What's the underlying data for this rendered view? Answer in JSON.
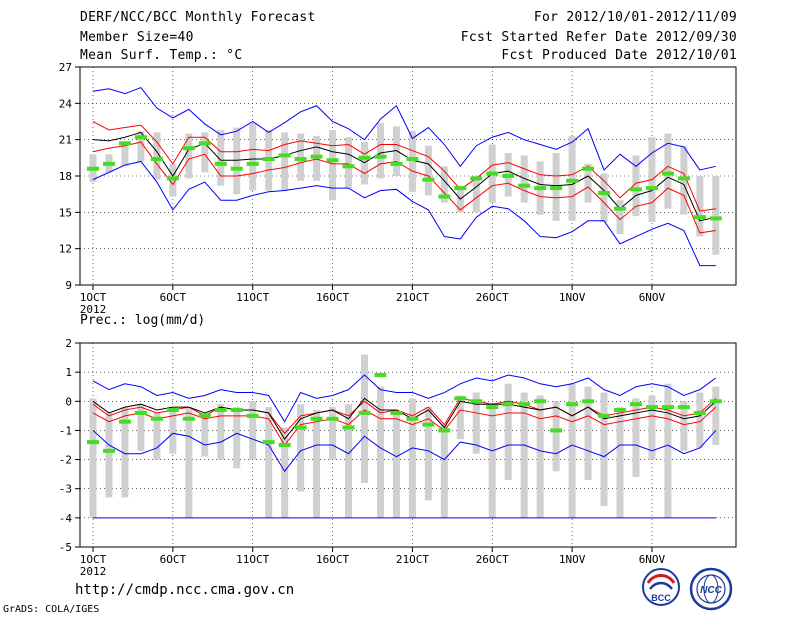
{
  "header": {
    "title": "DERF/NCC/BCC Monthly Forecast",
    "member_size": "Member Size=40",
    "variable1": "Mean Surf. Temp.: °C",
    "period": "For 2012/10/01-2012/11/09",
    "started": "Fcst Started Refer Date 2012/09/30",
    "produced": "Fcst Produced Date 2012/10/01"
  },
  "footer": {
    "url": "http://cmdp.ncc.cma.gov.cn",
    "grads": "GrADS: COLA/IGES",
    "logo1": "BCC",
    "logo2": "NCC"
  },
  "colors": {
    "upper_envelope": "#0000ff",
    "inner_band": "#ff0000",
    "ensemble_mean": "#000000",
    "box": "#d0d0d0",
    "marker": "#44dd22"
  },
  "chart_data": [
    {
      "type": "line",
      "title": "Mean Surf. Temp.: °C",
      "ylim": [
        9,
        27
      ],
      "yticks": [
        9,
        12,
        15,
        18,
        21,
        24,
        27
      ],
      "xlim": [
        1,
        40
      ],
      "xtick_positions": [
        1,
        6,
        11,
        16,
        21,
        26,
        31,
        36
      ],
      "xtick_labels": [
        "1OCT",
        "6OCT",
        "11OCT",
        "16OCT",
        "21OCT",
        "26OCT",
        "1NOV",
        "6NOV"
      ],
      "xtick_sublabel": "2012",
      "days": [
        1,
        2,
        3,
        4,
        5,
        6,
        7,
        8,
        9,
        10,
        11,
        12,
        13,
        14,
        15,
        16,
        17,
        18,
        19,
        20,
        21,
        22,
        23,
        24,
        25,
        26,
        27,
        28,
        29,
        30,
        31,
        32,
        33,
        34,
        35,
        36,
        37,
        38,
        39,
        40
      ],
      "series": [
        {
          "name": "max",
          "values": [
            25.0,
            25.2,
            24.8,
            25.3,
            23.6,
            22.8,
            23.5,
            22.3,
            21.4,
            21.7,
            22.5,
            21.6,
            22.4,
            23.3,
            23.8,
            22.5,
            21.9,
            21.0,
            22.7,
            23.8,
            21.1,
            22.0,
            20.6,
            18.8,
            20.5,
            21.2,
            21.6,
            21.0,
            20.6,
            20.2,
            20.8,
            21.9,
            18.5,
            19.8,
            18.8,
            19.9,
            20.7,
            20.4,
            18.5,
            18.8
          ]
        },
        {
          "name": "upper",
          "values": [
            22.5,
            21.8,
            22.0,
            22.2,
            20.8,
            19.0,
            21.2,
            21.2,
            20.0,
            20.0,
            20.2,
            20.1,
            20.6,
            20.9,
            20.7,
            20.5,
            20.6,
            19.8,
            20.6,
            20.6,
            20.1,
            19.6,
            18.4,
            16.9,
            17.8,
            18.9,
            19.1,
            18.6,
            18.1,
            18.0,
            18.1,
            18.8,
            17.6,
            16.2,
            17.4,
            17.7,
            18.8,
            18.2,
            15.1,
            15.3
          ]
        },
        {
          "name": "mean",
          "values": [
            21.0,
            20.9,
            21.2,
            21.6,
            20.0,
            18.0,
            20.2,
            20.7,
            19.3,
            19.3,
            19.4,
            19.4,
            19.7,
            20.1,
            20.4,
            20.0,
            19.8,
            19.1,
            19.9,
            20.1,
            19.3,
            19.0,
            17.6,
            16.1,
            17.1,
            18.2,
            18.4,
            17.8,
            17.3,
            17.2,
            17.3,
            18.0,
            16.8,
            15.3,
            16.4,
            16.8,
            17.9,
            17.3,
            14.3,
            14.6
          ]
        },
        {
          "name": "lower",
          "values": [
            20.0,
            20.3,
            20.5,
            20.8,
            19.0,
            17.3,
            19.4,
            19.8,
            18.0,
            18.0,
            18.2,
            18.5,
            18.7,
            19.1,
            19.4,
            19.0,
            19.0,
            18.2,
            19.0,
            19.2,
            18.4,
            18.0,
            16.6,
            15.2,
            16.2,
            17.2,
            17.4,
            16.8,
            16.3,
            16.2,
            16.3,
            17.1,
            15.8,
            14.4,
            15.5,
            15.8,
            17.0,
            16.4,
            13.3,
            13.5
          ]
        },
        {
          "name": "min",
          "values": [
            17.7,
            18.3,
            18.9,
            19.2,
            17.5,
            15.2,
            16.9,
            17.5,
            16.0,
            16.0,
            16.4,
            16.7,
            16.8,
            17.0,
            17.2,
            17.0,
            17.0,
            16.2,
            16.8,
            16.9,
            15.9,
            15.2,
            13.0,
            12.8,
            14.6,
            15.5,
            15.3,
            14.3,
            13.0,
            12.9,
            13.4,
            14.3,
            14.3,
            12.4,
            13.0,
            13.6,
            14.1,
            13.5,
            10.6,
            10.6
          ]
        }
      ],
      "box_low": [
        17.5,
        18.3,
        18.8,
        19.2,
        17.7,
        16.3,
        17.8,
        18.3,
        17.2,
        16.5,
        16.8,
        16.8,
        16.8,
        17.6,
        17.6,
        16.0,
        17.0,
        17.3,
        17.8,
        18.0,
        16.7,
        16.4,
        15.8,
        15.0,
        15.0,
        15.8,
        16.3,
        15.8,
        14.8,
        14.3,
        14.3,
        15.8,
        14.2,
        13.2,
        14.7,
        14.2,
        15.3,
        14.8,
        13.0,
        11.5
      ],
      "box_high": [
        19.8,
        19.8,
        20.6,
        21.7,
        21.6,
        19.0,
        21.5,
        21.6,
        21.8,
        22.0,
        22.3,
        21.8,
        21.6,
        21.5,
        21.3,
        21.8,
        21.2,
        20.8,
        22.4,
        22.1,
        21.7,
        20.5,
        18.8,
        17.2,
        18.0,
        20.6,
        19.9,
        19.7,
        19.2,
        19.9,
        21.3,
        19.0,
        18.2,
        16.0,
        19.7,
        21.2,
        21.5,
        20.5,
        18.0,
        18.0
      ],
      "green": [
        18.6,
        19.0,
        20.7,
        21.2,
        19.4,
        17.8,
        20.3,
        20.7,
        19.0,
        18.6,
        19.0,
        19.4,
        19.7,
        19.4,
        19.6,
        19.3,
        18.8,
        19.5,
        19.6,
        19.0,
        19.4,
        17.7,
        16.3,
        17.0,
        17.8,
        18.2,
        18.0,
        17.2,
        17.0,
        17.0,
        17.6,
        18.6,
        16.6,
        15.3,
        16.9,
        17.0,
        18.2,
        17.8,
        14.6,
        14.5
      ]
    },
    {
      "type": "line",
      "title": "Prec.: log(mm/d)",
      "ylim": [
        -5,
        2
      ],
      "yticks": [
        -5,
        -4,
        -3,
        -2,
        -1,
        0,
        1,
        2
      ],
      "xlim": [
        1,
        40
      ],
      "xtick_positions": [
        1,
        6,
        11,
        16,
        21,
        26,
        31,
        36
      ],
      "xtick_labels": [
        "1OCT",
        "6OCT",
        "11OCT",
        "16OCT",
        "21OCT",
        "26OCT",
        "1NOV",
        "6NOV"
      ],
      "xtick_sublabel": "2012",
      "days": [
        1,
        2,
        3,
        4,
        5,
        6,
        7,
        8,
        9,
        10,
        11,
        12,
        13,
        14,
        15,
        16,
        17,
        18,
        19,
        20,
        21,
        22,
        23,
        24,
        25,
        26,
        27,
        28,
        29,
        30,
        31,
        32,
        33,
        34,
        35,
        36,
        37,
        38,
        39,
        40
      ],
      "series": [
        {
          "name": "max",
          "values": [
            0.7,
            0.4,
            0.6,
            0.5,
            0.2,
            0.3,
            0.1,
            0.2,
            0.4,
            0.3,
            0.3,
            0.2,
            -0.7,
            0.3,
            0.1,
            0.2,
            0.4,
            0.9,
            0.4,
            0.3,
            0.3,
            0.1,
            0.3,
            0.6,
            0.8,
            0.7,
            0.9,
            0.8,
            0.6,
            0.5,
            0.6,
            0.8,
            0.4,
            0.2,
            0.5,
            0.6,
            0.5,
            0.2,
            0.4,
            0.8
          ]
        },
        {
          "name": "upper",
          "values": [
            -0.1,
            -0.5,
            -0.3,
            -0.2,
            -0.4,
            -0.3,
            -0.2,
            -0.5,
            -0.2,
            -0.3,
            -0.3,
            -0.4,
            -1.1,
            -0.5,
            -0.4,
            -0.3,
            -0.5,
            0.0,
            -0.4,
            -0.3,
            -0.5,
            -0.2,
            -0.8,
            0.1,
            0.0,
            -0.1,
            0.0,
            -0.1,
            -0.3,
            -0.2,
            -0.5,
            -0.2,
            -0.5,
            -0.4,
            -0.3,
            -0.2,
            -0.3,
            -0.5,
            -0.4,
            0.1
          ]
        },
        {
          "name": "mean",
          "values": [
            0.0,
            -0.4,
            -0.2,
            -0.1,
            -0.3,
            -0.2,
            -0.2,
            -0.4,
            -0.2,
            -0.3,
            -0.3,
            -0.4,
            -1.3,
            -0.6,
            -0.4,
            -0.3,
            -0.6,
            0.1,
            -0.3,
            -0.3,
            -0.6,
            -0.3,
            -0.9,
            0.0,
            -0.1,
            -0.1,
            -0.1,
            -0.2,
            -0.3,
            -0.2,
            -0.5,
            -0.2,
            -0.6,
            -0.5,
            -0.4,
            -0.3,
            -0.4,
            -0.6,
            -0.5,
            0.0
          ]
        },
        {
          "name": "lower",
          "values": [
            -0.4,
            -0.7,
            -0.5,
            -0.4,
            -0.6,
            -0.5,
            -0.4,
            -0.6,
            -0.5,
            -0.5,
            -0.5,
            -0.6,
            -1.5,
            -0.8,
            -0.7,
            -0.6,
            -0.8,
            -0.3,
            -0.6,
            -0.6,
            -0.8,
            -0.6,
            -1.0,
            -0.3,
            -0.4,
            -0.5,
            -0.4,
            -0.4,
            -0.6,
            -0.5,
            -0.7,
            -0.5,
            -0.8,
            -0.7,
            -0.6,
            -0.5,
            -0.6,
            -0.8,
            -0.7,
            -0.2
          ]
        },
        {
          "name": "min",
          "values": [
            -1.0,
            -1.5,
            -1.8,
            -1.8,
            -1.6,
            -1.1,
            -1.2,
            -1.5,
            -1.4,
            -1.1,
            -1.3,
            -1.5,
            -2.4,
            -1.7,
            -1.5,
            -1.5,
            -1.8,
            -1.2,
            -1.6,
            -1.9,
            -1.6,
            -1.7,
            -2.0,
            -1.4,
            -1.5,
            -1.7,
            -1.5,
            -1.5,
            -1.7,
            -1.8,
            -1.5,
            -1.7,
            -1.9,
            -1.5,
            -1.5,
            -1.7,
            -1.5,
            -1.8,
            -1.6,
            -1.0
          ]
        },
        {
          "name": "floor",
          "values": [
            -4,
            -4,
            -4,
            -4,
            -4,
            -4,
            -4,
            -4,
            -4,
            -4,
            -4,
            -4,
            -4,
            -4,
            -4,
            -4,
            -4,
            -4,
            -4,
            -4,
            -4,
            -4,
            -4,
            -4,
            -4,
            -4,
            -4,
            -4,
            -4,
            -4,
            -4,
            -4,
            -4,
            -4,
            -4,
            -4,
            -4,
            -4,
            -4,
            -4
          ]
        }
      ],
      "box_low": [
        -4.0,
        -3.3,
        -3.3,
        -1.7,
        -2.0,
        -1.8,
        -4.0,
        -1.9,
        -2.0,
        -2.3,
        -2.0,
        -4.0,
        -4.0,
        -3.1,
        -4.0,
        -2.0,
        -4.0,
        -2.8,
        -4.0,
        -4.0,
        -4.0,
        -3.4,
        -4.0,
        -1.3,
        -1.8,
        -4.0,
        -2.7,
        -4.0,
        -4.0,
        -2.4,
        -4.0,
        -2.7,
        -3.6,
        -4.0,
        -2.6,
        -2.0,
        -4.0,
        -1.7,
        -1.6,
        -1.5
      ],
      "box_high": [
        0.1,
        -0.4,
        -0.2,
        -0.1,
        -0.4,
        -0.2,
        -0.2,
        -0.4,
        -0.1,
        -0.2,
        0.0,
        -0.2,
        -0.9,
        -0.1,
        -0.3,
        -0.2,
        -0.1,
        1.6,
        0.5,
        -0.4,
        0.1,
        -0.2,
        -0.8,
        0.2,
        0.3,
        -0.1,
        0.6,
        0.3,
        0.2,
        0.0,
        0.6,
        0.5,
        0.3,
        -0.2,
        0.1,
        0.2,
        0.6,
        0.0,
        0.3,
        0.5
      ],
      "green": [
        -1.4,
        -1.7,
        -0.7,
        -0.4,
        -0.6,
        -0.3,
        -0.6,
        -0.5,
        -0.3,
        -0.3,
        -0.5,
        -1.4,
        -1.5,
        -0.9,
        -0.6,
        -0.6,
        -0.9,
        -0.4,
        0.9,
        -0.4,
        -0.6,
        -0.8,
        -1.0,
        0.1,
        0.0,
        -0.2,
        -0.1,
        -0.1,
        0.0,
        -1.0,
        -0.1,
        0.0,
        -0.5,
        -0.3,
        -0.1,
        -0.2,
        -0.2,
        -0.2,
        -0.4,
        0.0
      ]
    }
  ]
}
